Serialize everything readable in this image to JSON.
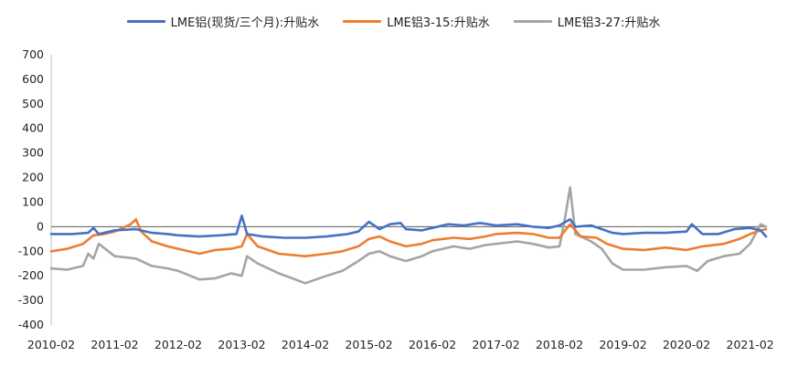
{
  "chart_data": {
    "type": "line",
    "title": "",
    "xlabel": "",
    "ylabel": "",
    "ylim": [
      -400,
      700
    ],
    "yticks": [
      -400,
      -300,
      -200,
      -100,
      0,
      100,
      200,
      300,
      400,
      500,
      600,
      700
    ],
    "xticks": [
      "2010-02",
      "2011-02",
      "2012-02",
      "2013-02",
      "2014-02",
      "2015-02",
      "2016-02",
      "2017-02",
      "2018-02",
      "2019-02",
      "2020-02",
      "2021-02"
    ],
    "x_range": [
      "2010-02",
      "2021-05"
    ],
    "grid": false,
    "zero_line": true,
    "legend_position": "top",
    "series": [
      {
        "name": "LME铝(现货/三个月):升贴水",
        "color": "#4472C4",
        "points": [
          [
            "2010-02",
            -30
          ],
          [
            "2010-06",
            -30
          ],
          [
            "2010-09",
            -25
          ],
          [
            "2010-10",
            -5
          ],
          [
            "2010-11",
            -30
          ],
          [
            "2011-02",
            -15
          ],
          [
            "2011-06",
            -10
          ],
          [
            "2011-09",
            -25
          ],
          [
            "2011-12",
            -30
          ],
          [
            "2012-02",
            -35
          ],
          [
            "2012-06",
            -40
          ],
          [
            "2012-10",
            -35
          ],
          [
            "2013-01",
            -30
          ],
          [
            "2013-02",
            45
          ],
          [
            "2013-03",
            -30
          ],
          [
            "2013-06",
            -40
          ],
          [
            "2013-10",
            -45
          ],
          [
            "2014-02",
            -45
          ],
          [
            "2014-06",
            -40
          ],
          [
            "2014-10",
            -30
          ],
          [
            "2014-12",
            -20
          ],
          [
            "2015-02",
            20
          ],
          [
            "2015-04",
            -10
          ],
          [
            "2015-06",
            10
          ],
          [
            "2015-08",
            15
          ],
          [
            "2015-09",
            -10
          ],
          [
            "2015-12",
            -15
          ],
          [
            "2016-02",
            -5
          ],
          [
            "2016-05",
            10
          ],
          [
            "2016-08",
            5
          ],
          [
            "2016-11",
            15
          ],
          [
            "2017-02",
            5
          ],
          [
            "2017-06",
            10
          ],
          [
            "2017-09",
            0
          ],
          [
            "2017-12",
            -5
          ],
          [
            "2018-02",
            5
          ],
          [
            "2018-04",
            30
          ],
          [
            "2018-05",
            0
          ],
          [
            "2018-08",
            5
          ],
          [
            "2018-10",
            -10
          ],
          [
            "2018-12",
            -25
          ],
          [
            "2019-02",
            -30
          ],
          [
            "2019-06",
            -25
          ],
          [
            "2019-10",
            -25
          ],
          [
            "2020-02",
            -20
          ],
          [
            "2020-03",
            10
          ],
          [
            "2020-05",
            -30
          ],
          [
            "2020-08",
            -30
          ],
          [
            "2020-11",
            -10
          ],
          [
            "2021-02",
            -5
          ],
          [
            "2021-04",
            -15
          ],
          [
            "2021-05",
            -40
          ]
        ]
      },
      {
        "name": "LME铝3-15:升贴水",
        "color": "#ED7D31",
        "points": [
          [
            "2010-02",
            -100
          ],
          [
            "2010-05",
            -90
          ],
          [
            "2010-08",
            -70
          ],
          [
            "2010-10",
            -35
          ],
          [
            "2010-12",
            -30
          ],
          [
            "2011-02",
            -20
          ],
          [
            "2011-05",
            10
          ],
          [
            "2011-06",
            30
          ],
          [
            "2011-07",
            -20
          ],
          [
            "2011-09",
            -60
          ],
          [
            "2011-12",
            -80
          ],
          [
            "2012-02",
            -90
          ],
          [
            "2012-06",
            -110
          ],
          [
            "2012-09",
            -95
          ],
          [
            "2012-12",
            -90
          ],
          [
            "2013-02",
            -80
          ],
          [
            "2013-03",
            -30
          ],
          [
            "2013-05",
            -80
          ],
          [
            "2013-09",
            -110
          ],
          [
            "2014-02",
            -120
          ],
          [
            "2014-06",
            -110
          ],
          [
            "2014-09",
            -100
          ],
          [
            "2014-12",
            -80
          ],
          [
            "2015-02",
            -50
          ],
          [
            "2015-04",
            -40
          ],
          [
            "2015-06",
            -60
          ],
          [
            "2015-09",
            -80
          ],
          [
            "2015-12",
            -70
          ],
          [
            "2016-02",
            -55
          ],
          [
            "2016-06",
            -45
          ],
          [
            "2016-09",
            -50
          ],
          [
            "2016-12",
            -40
          ],
          [
            "2017-02",
            -30
          ],
          [
            "2017-06",
            -25
          ],
          [
            "2017-09",
            -30
          ],
          [
            "2017-12",
            -45
          ],
          [
            "2018-02",
            -45
          ],
          [
            "2018-04",
            10
          ],
          [
            "2018-06",
            -40
          ],
          [
            "2018-09",
            -45
          ],
          [
            "2018-11",
            -70
          ],
          [
            "2019-02",
            -90
          ],
          [
            "2019-06",
            -95
          ],
          [
            "2019-10",
            -85
          ],
          [
            "2020-02",
            -95
          ],
          [
            "2020-05",
            -80
          ],
          [
            "2020-09",
            -70
          ],
          [
            "2020-12",
            -50
          ],
          [
            "2021-02",
            -30
          ],
          [
            "2021-04",
            -15
          ],
          [
            "2021-05",
            -10
          ]
        ]
      },
      {
        "name": "LME铝3-27:升贴水",
        "color": "#A5A5A5",
        "points": [
          [
            "2010-02",
            -170
          ],
          [
            "2010-05",
            -175
          ],
          [
            "2010-08",
            -160
          ],
          [
            "2010-09",
            -110
          ],
          [
            "2010-10",
            -130
          ],
          [
            "2010-11",
            -70
          ],
          [
            "2011-02",
            -120
          ],
          [
            "2011-06",
            -130
          ],
          [
            "2011-09",
            -160
          ],
          [
            "2011-12",
            -170
          ],
          [
            "2012-02",
            -180
          ],
          [
            "2012-06",
            -215
          ],
          [
            "2012-09",
            -210
          ],
          [
            "2012-12",
            -190
          ],
          [
            "2013-02",
            -200
          ],
          [
            "2013-03",
            -120
          ],
          [
            "2013-05",
            -150
          ],
          [
            "2013-09",
            -190
          ],
          [
            "2014-02",
            -230
          ],
          [
            "2014-06",
            -200
          ],
          [
            "2014-09",
            -180
          ],
          [
            "2014-12",
            -140
          ],
          [
            "2015-02",
            -110
          ],
          [
            "2015-04",
            -100
          ],
          [
            "2015-06",
            -120
          ],
          [
            "2015-09",
            -140
          ],
          [
            "2015-12",
            -120
          ],
          [
            "2016-02",
            -100
          ],
          [
            "2016-06",
            -80
          ],
          [
            "2016-09",
            -90
          ],
          [
            "2016-12",
            -75
          ],
          [
            "2017-02",
            -70
          ],
          [
            "2017-06",
            -60
          ],
          [
            "2017-09",
            -70
          ],
          [
            "2017-12",
            -85
          ],
          [
            "2018-02",
            -80
          ],
          [
            "2018-03",
            30
          ],
          [
            "2018-04",
            160
          ],
          [
            "2018-05",
            -30
          ],
          [
            "2018-08",
            -60
          ],
          [
            "2018-10",
            -90
          ],
          [
            "2018-12",
            -150
          ],
          [
            "2019-02",
            -175
          ],
          [
            "2019-06",
            -175
          ],
          [
            "2019-10",
            -165
          ],
          [
            "2020-02",
            -160
          ],
          [
            "2020-04",
            -180
          ],
          [
            "2020-06",
            -140
          ],
          [
            "2020-09",
            -120
          ],
          [
            "2020-12",
            -110
          ],
          [
            "2021-02",
            -70
          ],
          [
            "2021-04",
            10
          ],
          [
            "2021-05",
            0
          ]
        ]
      }
    ]
  }
}
